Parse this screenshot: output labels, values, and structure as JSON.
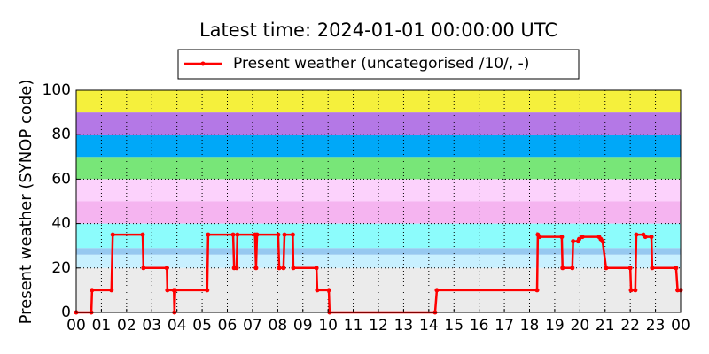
{
  "chart_data": {
    "type": "line",
    "title": "Latest time: 2024-01-01 00:00:00 UTC",
    "y_label": "Present weather (SYNOP code)",
    "x": [
      0,
      0.6,
      0.63,
      1.4,
      1.45,
      2.64,
      2.67,
      3.6,
      3.62,
      3.88,
      3.9,
      3.93,
      5.2,
      5.24,
      6.23,
      6.27,
      6.37,
      6.4,
      7.1,
      7.14,
      7.18,
      8.02,
      8.06,
      8.23,
      8.27,
      8.6,
      8.62,
      9.54,
      9.57,
      10.03,
      10.06,
      14.25,
      14.32,
      18.3,
      18.33,
      18.4,
      19.28,
      19.31,
      19.7,
      19.73,
      19.93,
      19.97,
      20.1,
      20.76,
      20.83,
      20.9,
      21.04,
      22,
      22.03,
      22.2,
      22.24,
      22.52,
      22.6,
      22.84,
      22.87,
      23.82,
      23.88,
      24
    ],
    "series": [
      {
        "name": "Present weather (uncategorised /10/, -)",
        "color": "#ff0000",
        "values": [
          0,
          0,
          10,
          10,
          35,
          35,
          20,
          20,
          10,
          10,
          0,
          10,
          10,
          35,
          35,
          20,
          20,
          35,
          35,
          20,
          35,
          35,
          20,
          20,
          35,
          35,
          20,
          20,
          10,
          10,
          0,
          0,
          10,
          10,
          35,
          34,
          34,
          20,
          20,
          32,
          32,
          33,
          34,
          34,
          33,
          32,
          20,
          20,
          10,
          10,
          35,
          35,
          34,
          34,
          20,
          20,
          10,
          10
        ]
      }
    ],
    "xlim": [
      0,
      24
    ],
    "xticks": [
      {
        "value": 0,
        "label": "00"
      },
      {
        "value": 1,
        "label": "01"
      },
      {
        "value": 2,
        "label": "02"
      },
      {
        "value": 3,
        "label": "03"
      },
      {
        "value": 4,
        "label": "04"
      },
      {
        "value": 5,
        "label": "05"
      },
      {
        "value": 6,
        "label": "06"
      },
      {
        "value": 7,
        "label": "07"
      },
      {
        "value": 8,
        "label": "08"
      },
      {
        "value": 9,
        "label": "09"
      },
      {
        "value": 10,
        "label": "10"
      },
      {
        "value": 11,
        "label": "11"
      },
      {
        "value": 12,
        "label": "12"
      },
      {
        "value": 13,
        "label": "13"
      },
      {
        "value": 14,
        "label": "14"
      },
      {
        "value": 15,
        "label": "15"
      },
      {
        "value": 16,
        "label": "16"
      },
      {
        "value": 17,
        "label": "17"
      },
      {
        "value": 18,
        "label": "18"
      },
      {
        "value": 19,
        "label": "19"
      },
      {
        "value": 20,
        "label": "20"
      },
      {
        "value": 21,
        "label": "21"
      },
      {
        "value": 22,
        "label": "22"
      },
      {
        "value": 23,
        "label": "23"
      },
      {
        "value": 24,
        "label": "00"
      }
    ],
    "ylim": [
      0,
      100
    ],
    "yticks": [
      0,
      20,
      40,
      60,
      80,
      100
    ],
    "grid": true,
    "bands": [
      {
        "from": 0,
        "to": 20,
        "color": "#ebebeb"
      },
      {
        "from": 20,
        "to": 26,
        "color": "#c8f0ff"
      },
      {
        "from": 26,
        "to": 29,
        "color": "#96c8f0"
      },
      {
        "from": 29,
        "to": 40,
        "color": "#8cfcfc"
      },
      {
        "from": 40,
        "to": 50,
        "color": "#f5b4f0"
      },
      {
        "from": 50,
        "to": 60,
        "color": "#fcd2fc"
      },
      {
        "from": 60,
        "to": 70,
        "color": "#78e678"
      },
      {
        "from": 70,
        "to": 80,
        "color": "#00a8f8"
      },
      {
        "from": 80,
        "to": 90,
        "color": "#b478e6"
      },
      {
        "from": 90,
        "to": 100,
        "color": "#f5f03c"
      }
    ]
  }
}
